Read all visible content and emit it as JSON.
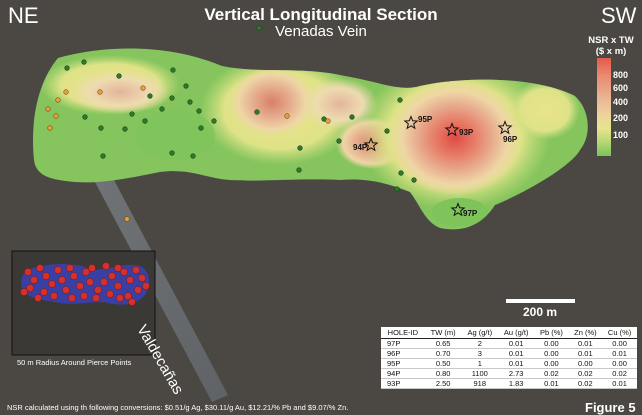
{
  "header": {
    "left_direction": "NE",
    "right_direction": "SW",
    "title": "Vertical Longitudinal Section",
    "subtitle": "Venadas Vein"
  },
  "legend": {
    "title": "NSR x TW ($ x m)",
    "ticks": [
      "800",
      "600",
      "400",
      "200",
      "100"
    ],
    "colors": [
      "#e35a4c",
      "#ea8a70",
      "#e9b394",
      "#eed29d",
      "#e7e48d",
      "#b6d675",
      "#7cc25a"
    ]
  },
  "labels": {
    "structure": "Valdecañas",
    "inset_caption": "50 m Radius Around Pierce Points",
    "scale_bar": "200 m",
    "footer_note": "NSR calculated using th following conversions: $0.51/g Ag, $30.11/g Au,  $12.21/% Pb and $9.07/% Zn.",
    "figure": "Figure 5"
  },
  "pierce_points": [
    {
      "id": "94P"
    },
    {
      "id": "95P"
    },
    {
      "id": "93P"
    },
    {
      "id": "96P"
    },
    {
      "id": "97P"
    }
  ],
  "table": {
    "headers": [
      "HOLE-ID",
      "TW (m)",
      "Ag (g/t)",
      "Au (g/t)",
      "Pb (%)",
      "Zn (%)",
      "Cu (%)"
    ],
    "rows": [
      [
        "97P",
        "0.65",
        "2",
        "0.01",
        "0.00",
        "0.01",
        "0.00"
      ],
      [
        "96P",
        "0.70",
        "3",
        "0.01",
        "0.00",
        "0.01",
        "0.01"
      ],
      [
        "95P",
        "0.50",
        "1",
        "0.01",
        "0.00",
        "0.00",
        "0.00"
      ],
      [
        "94P",
        "0.80",
        "1100",
        "2.73",
        "0.02",
        "0.02",
        "0.02"
      ],
      [
        "93P",
        "2.50",
        "918",
        "1.83",
        "0.01",
        "0.02",
        "0.01"
      ]
    ]
  }
}
